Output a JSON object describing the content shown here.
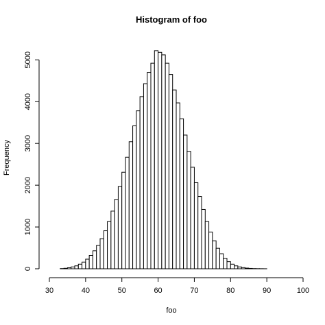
{
  "chart_data": {
    "type": "bar",
    "title": "Histogram of foo",
    "xlabel": "foo",
    "ylabel": "Frequency",
    "xlim": [
      30,
      100
    ],
    "ylim": [
      0,
      5300
    ],
    "x_ticks": [
      30,
      40,
      50,
      60,
      70,
      80,
      90,
      100
    ],
    "y_ticks": [
      0,
      1000,
      2000,
      3000,
      4000,
      5000
    ],
    "bin_width": 1,
    "bins_start": [
      33,
      34,
      35,
      36,
      37,
      38,
      39,
      40,
      41,
      42,
      43,
      44,
      45,
      46,
      47,
      48,
      49,
      50,
      51,
      52,
      53,
      54,
      55,
      56,
      57,
      58,
      59,
      60,
      61,
      62,
      63,
      64,
      65,
      66,
      67,
      68,
      69,
      70,
      71,
      72,
      73,
      74,
      75,
      76,
      77,
      78,
      79,
      80,
      81,
      82,
      83,
      84,
      85,
      86,
      87,
      88,
      89,
      90,
      91,
      92,
      93,
      94,
      95,
      96,
      97
    ],
    "values": [
      5,
      12,
      25,
      45,
      70,
      110,
      160,
      230,
      320,
      430,
      560,
      720,
      910,
      1130,
      1380,
      1660,
      1970,
      2310,
      2670,
      3040,
      3420,
      3780,
      4120,
      4430,
      4700,
      4920,
      5220,
      5180,
      5120,
      4920,
      4650,
      4280,
      3970,
      3590,
      3200,
      2810,
      2430,
      2060,
      1730,
      1420,
      1130,
      880,
      670,
      490,
      360,
      250,
      170,
      110,
      70,
      45,
      28,
      16,
      9,
      5,
      3,
      2,
      1,
      0,
      0,
      0,
      0,
      0,
      0,
      0,
      0
    ],
    "grid": false,
    "legend": "none"
  }
}
